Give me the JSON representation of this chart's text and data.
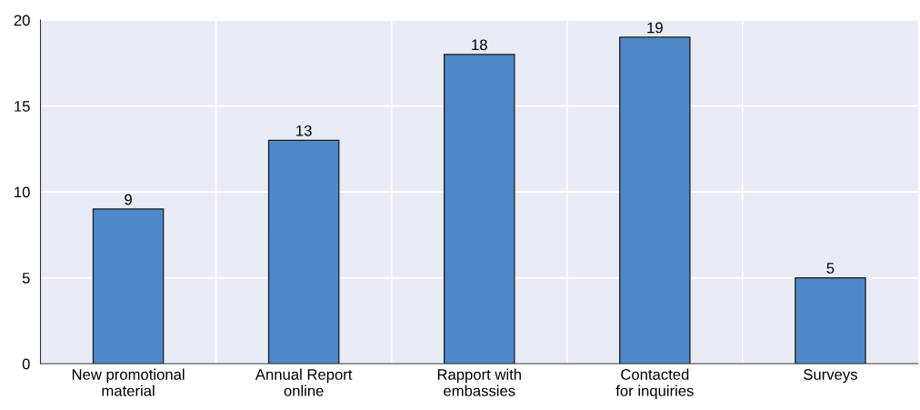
{
  "chart_data": {
    "type": "bar",
    "categories": [
      "New promotional\nmaterial",
      "Annual Report\nonline",
      "Rapport with\nembassies",
      "Contacted\nfor inquiries",
      "Surveys"
    ],
    "values": [
      9,
      13,
      18,
      19,
      5
    ],
    "color": "#4e88c7",
    "ylim": [
      0,
      20
    ],
    "yticks": [
      0,
      5,
      10,
      15,
      20
    ],
    "grid": true,
    "data_labels": true
  }
}
